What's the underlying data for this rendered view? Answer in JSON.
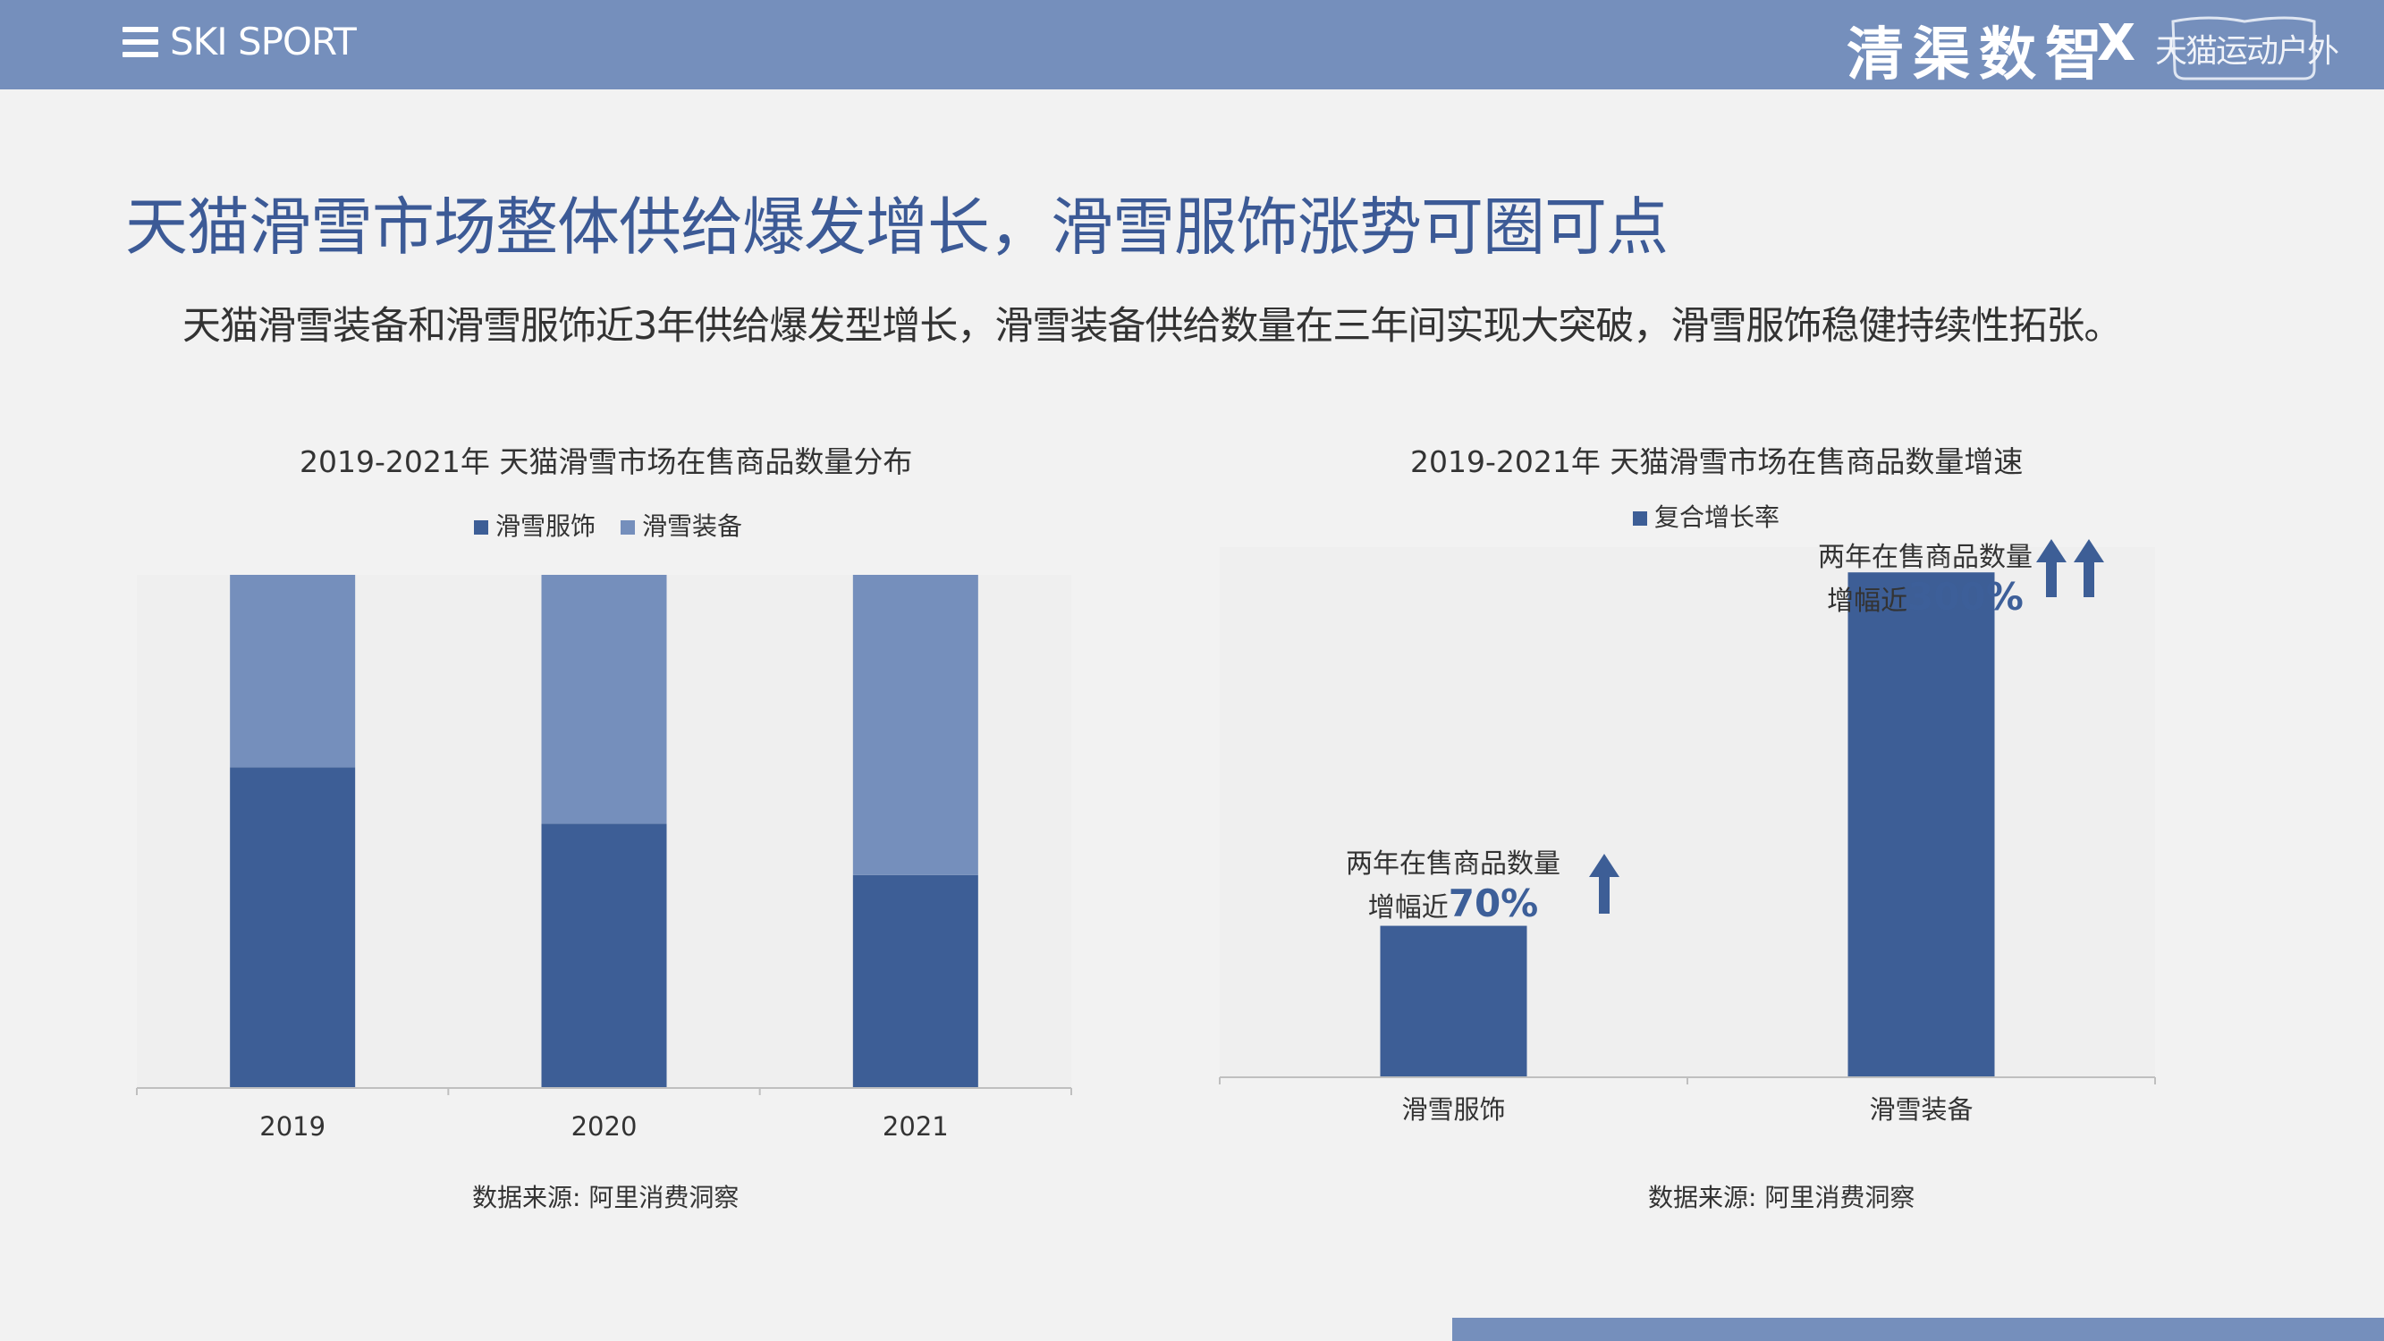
{
  "header": {
    "brand": "SKI SPORT",
    "logo_partner": "清渠数智",
    "logo_x": "X",
    "logo_tmall": "天猫运动户外"
  },
  "headline": "天猫滑雪市场整体供给爆发增长，滑雪服饰涨势可圈可点",
  "subline": "天猫滑雪装备和滑雪服饰近3年供给爆发型增长，滑雪装备供给数量在三年间实现大突破，滑雪服饰稳健持续性拓张。",
  "colors": {
    "dark_blue": "#3d5e96",
    "light_blue": "#758fbc",
    "arrow": "#3d5e96"
  },
  "chart_data": [
    {
      "type": "bar",
      "stacked": true,
      "normalized": true,
      "title": "2019-2021年 天猫滑雪市场在售商品数量分布",
      "categories": [
        "2019",
        "2020",
        "2021"
      ],
      "series": [
        {
          "name": "滑雪服饰",
          "values": [
            62.5,
            51.5,
            41.5
          ]
        },
        {
          "name": "滑雪装备",
          "values": [
            37.5,
            48.5,
            58.5
          ]
        }
      ],
      "ylim": [
        0,
        100
      ],
      "legend": "top-center",
      "grid": false,
      "source": "数据来源: 阿里消费洞察"
    },
    {
      "type": "bar",
      "title": "2019-2021年 天猫滑雪市场在售商品数量增速",
      "categories": [
        "滑雪服饰",
        "滑雪装备"
      ],
      "series": [
        {
          "name": "复合增长率",
          "values": [
            30,
            100
          ]
        }
      ],
      "ylim": [
        0,
        105
      ],
      "legend": "top-center",
      "grid": false,
      "annotations": [
        {
          "line1": "两年在售商品数量",
          "prefix": "增幅近",
          "pct": "70%",
          "arrows": 1
        },
        {
          "line1": "两年在售商品数量",
          "prefix": "增幅近",
          "pct": "300%",
          "arrows": 2
        }
      ],
      "source": "数据来源: 阿里消费洞察"
    }
  ]
}
